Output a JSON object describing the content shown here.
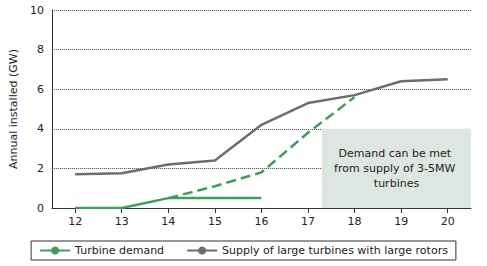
{
  "chart_data": {
    "type": "line",
    "x": [
      12,
      13,
      14,
      15,
      16,
      17,
      18,
      19,
      20
    ],
    "series": [
      {
        "name": "Turbine demand",
        "color": "#3d9e5e",
        "line_style": "solid",
        "values": [
          0,
          0,
          0.5,
          0.5,
          0.5,
          null,
          null,
          null,
          null
        ]
      },
      {
        "color": "#3d9e5e",
        "line_style": "dashed",
        "values": [
          null,
          null,
          0.5,
          1.1,
          1.8,
          3.8,
          5.6,
          null,
          null
        ]
      },
      {
        "name": "Supply of large turbines with large rotors",
        "color": "#6d6d6d",
        "line_style": "solid",
        "values": [
          1.7,
          1.75,
          2.2,
          2.4,
          4.2,
          5.3,
          5.7,
          6.4,
          6.5
        ]
      }
    ],
    "xlim": [
      11.5,
      20.5
    ],
    "xticks": [
      12,
      13,
      14,
      15,
      16,
      17,
      18,
      19,
      20
    ],
    "ylim": [
      0,
      10
    ],
    "yticks": [
      0,
      2,
      4,
      6,
      8,
      10
    ],
    "y_label": "Annual installed (GW)",
    "grid": true,
    "legend": "bottom",
    "annotation": {
      "text": "Demand can be met from supply of 3-5MW turbines",
      "color": "#dde6e1",
      "x": [
        17.3,
        20.5
      ],
      "y": [
        0,
        4
      ]
    }
  }
}
